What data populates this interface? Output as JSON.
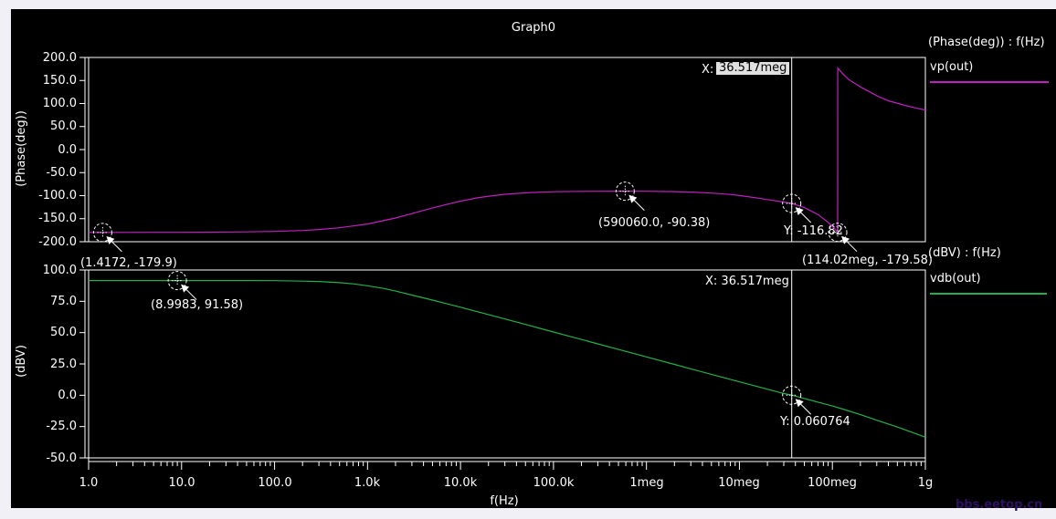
{
  "window": {
    "title": "Graph0"
  },
  "watermark": "bbs.eetop.cn",
  "colors": {
    "page_bg": "#f1f0f6",
    "plot_bg": "#000000",
    "frame": "#ffffff",
    "phase_trace": "#c020c0",
    "magnitude_trace": "#21b14c",
    "cursor_value_bg": "#e0e0e0"
  },
  "xaxis": {
    "label": "f(Hz)",
    "scale": "log",
    "ticks": [
      "1.0",
      "10.0",
      "100.0",
      "1.0k",
      "10.0k",
      "100.0k",
      "1meg",
      "10meg",
      "100meg",
      "1g"
    ]
  },
  "chart_data": [
    {
      "type": "line",
      "title": "Graph0",
      "legend_title": "(Phase(deg)) : f(Hz)",
      "trace_name": "vp(out)",
      "color": "#c020c0",
      "xlabel": "f(Hz)",
      "ylabel": "(Phase(deg))",
      "x_scale": "log",
      "xlim": [
        1,
        1000000000
      ],
      "ylim": [
        -200,
        200
      ],
      "yticks": [
        "200.0",
        "150.0",
        "100.0",
        "50.0",
        "0.0",
        "-50.0",
        "-100.0",
        "-150.0",
        "-200.0"
      ],
      "grid": false,
      "cursor": {
        "x_hz": 36517000,
        "x_prefix": "X:",
        "x_value": "36.517meg",
        "y_value": -116.82,
        "y_label": "Y: -116.82"
      },
      "markers": [
        {
          "x": 1.4172,
          "y": -179.9,
          "label": "(1.4172, -179.9)"
        },
        {
          "x": 590060,
          "y": -90.38,
          "label": "(590060.0, -90.38)"
        },
        {
          "x": 114020000,
          "y": -179.58,
          "label": "(114.02meg, -179.58)"
        }
      ],
      "series": [
        {
          "name": "vp(out)",
          "points": [
            [
              1,
              -179.9
            ],
            [
              2,
              -179.85
            ],
            [
              5,
              -179.7
            ],
            [
              10,
              -179.55
            ],
            [
              20,
              -179.3
            ],
            [
              50,
              -178.7
            ],
            [
              100,
              -177.6
            ],
            [
              200,
              -175.6
            ],
            [
              300,
              -173.4
            ],
            [
              500,
              -169.8
            ],
            [
              1000,
              -161.5
            ],
            [
              2000,
              -148.5
            ],
            [
              3000,
              -139
            ],
            [
              5000,
              -126.5
            ],
            [
              8000,
              -116.5
            ],
            [
              10000,
              -111.8
            ],
            [
              15000,
              -105
            ],
            [
              20000,
              -101.2
            ],
            [
              30000,
              -97
            ],
            [
              50000,
              -93.8
            ],
            [
              100000,
              -91.5
            ],
            [
              200000,
              -90.7
            ],
            [
              590060,
              -90.38
            ],
            [
              1000000,
              -90.5
            ],
            [
              2000000,
              -91.2
            ],
            [
              3000000,
              -92.2
            ],
            [
              5000000,
              -94.5
            ],
            [
              8000000,
              -97.5
            ],
            [
              10000000,
              -99.8
            ],
            [
              15000000,
              -104.5
            ],
            [
              20000000,
              -108.6
            ],
            [
              30000000,
              -113.9
            ],
            [
              36517000,
              -116.8
            ],
            [
              50000000,
              -126
            ],
            [
              70000000,
              -141
            ],
            [
              90000000,
              -158
            ],
            [
              105000000,
              -171
            ],
            [
              114020000,
              -179.58
            ],
            [
              114300000,
              177
            ],
            [
              130000000,
              164
            ],
            [
              150000000,
              152
            ],
            [
              200000000,
              136
            ],
            [
              300000000,
              117
            ],
            [
              400000000,
              106
            ],
            [
              600000000,
              96
            ],
            [
              800000000,
              90
            ],
            [
              1000000000,
              86
            ]
          ]
        }
      ]
    },
    {
      "type": "line",
      "title": "Graph0",
      "legend_title": "(dBV) : f(Hz)",
      "trace_name": "vdb(out)",
      "color": "#21b14c",
      "xlabel": "f(Hz)",
      "ylabel": "(dBV)",
      "x_scale": "log",
      "xlim": [
        1,
        1000000000
      ],
      "ylim": [
        -50,
        100
      ],
      "yticks": [
        "100.0",
        "75.0",
        "50.0",
        "25.0",
        "0.0",
        "-25.0",
        "-50.0"
      ],
      "grid": false,
      "cursor": {
        "x_hz": 36517000,
        "x_label": "X: 36.517meg",
        "y_value": 0.060764,
        "y_label": "Y: 0.060764"
      },
      "markers": [
        {
          "x": 8.9983,
          "y": 91.58,
          "label": "(8.9983, 91.58)"
        }
      ],
      "series": [
        {
          "name": "vdb(out)",
          "points": [
            [
              1,
              91.58
            ],
            [
              10,
              91.58
            ],
            [
              50,
              91.55
            ],
            [
              100,
              91.45
            ],
            [
              200,
              91.15
            ],
            [
              300,
              90.8
            ],
            [
              500,
              89.9
            ],
            [
              700,
              88.9
            ],
            [
              1000,
              87.4
            ],
            [
              1500,
              85.2
            ],
            [
              2000,
              83.2
            ],
            [
              3000,
              80
            ],
            [
              5000,
              76
            ],
            [
              7000,
              73.2
            ],
            [
              10000,
              70.3
            ],
            [
              20000,
              64.4
            ],
            [
              30000,
              60.9
            ],
            [
              50000,
              56.5
            ],
            [
              100000,
              50.5
            ],
            [
              200000,
              44.5
            ],
            [
              300000,
              41
            ],
            [
              500000,
              36.6
            ],
            [
              1000000,
              30.6
            ],
            [
              2000000,
              24.6
            ],
            [
              3000000,
              21.1
            ],
            [
              5000000,
              16.7
            ],
            [
              10000000,
              10.7
            ],
            [
              20000000,
              4.8
            ],
            [
              30000000,
              1.4
            ],
            [
              36517000,
              0.060764
            ],
            [
              50000000,
              -2.6
            ],
            [
              70000000,
              -5.5
            ],
            [
              100000000,
              -8.6
            ],
            [
              150000000,
              -12.5
            ],
            [
              200000000,
              -15.5
            ],
            [
              300000000,
              -19.9
            ],
            [
              500000000,
              -25.4
            ],
            [
              700000000,
              -29.3
            ],
            [
              1000000000,
              -33.5
            ]
          ]
        }
      ]
    }
  ]
}
